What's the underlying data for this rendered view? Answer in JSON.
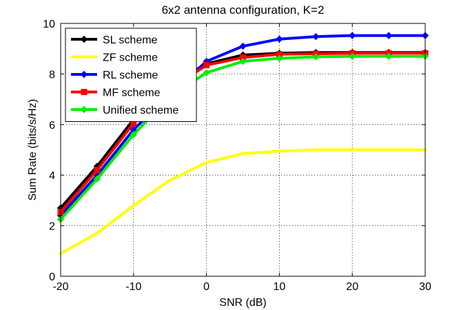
{
  "chart_data": {
    "type": "line",
    "title": "6x2 antenna configuration, K=2",
    "xlabel": "SNR (dB)",
    "ylabel": "Sum Rate (bits/s/Hz)",
    "xlim": [
      -20,
      30
    ],
    "ylim": [
      0,
      10
    ],
    "xticks": [
      -20,
      -10,
      0,
      10,
      20,
      30
    ],
    "yticks": [
      0,
      2,
      4,
      6,
      8,
      10
    ],
    "x": [
      -20,
      -15,
      -10,
      -5,
      0,
      5,
      10,
      15,
      20,
      25,
      30
    ],
    "grid": true,
    "legend_position": "top-left",
    "series": [
      {
        "name": "SL scheme",
        "color": "#000000",
        "marker": "diamond",
        "values": [
          2.7,
          4.35,
          6.2,
          7.6,
          8.4,
          8.75,
          8.82,
          8.85,
          8.85,
          8.85,
          8.85
        ]
      },
      {
        "name": "ZF scheme",
        "color": "#ffff00",
        "marker": "none",
        "values": [
          0.9,
          1.7,
          2.8,
          3.8,
          4.5,
          4.85,
          4.95,
          5.0,
          5.0,
          5.0,
          5.0
        ]
      },
      {
        "name": "RL scheme",
        "color": "#0000ff",
        "marker": "diamond",
        "values": [
          2.4,
          4.0,
          5.8,
          7.2,
          8.5,
          9.1,
          9.38,
          9.48,
          9.52,
          9.52,
          9.52
        ]
      },
      {
        "name": "MF scheme",
        "color": "#ff0000",
        "marker": "square",
        "values": [
          2.55,
          4.2,
          6.05,
          7.4,
          8.35,
          8.65,
          8.78,
          8.8,
          8.82,
          8.82,
          8.82
        ]
      },
      {
        "name": "Unified scheme",
        "color": "#00ee00",
        "marker": "diamond",
        "values": [
          2.25,
          3.85,
          5.6,
          7.1,
          8.05,
          8.5,
          8.62,
          8.68,
          8.7,
          8.7,
          8.7
        ]
      }
    ]
  }
}
